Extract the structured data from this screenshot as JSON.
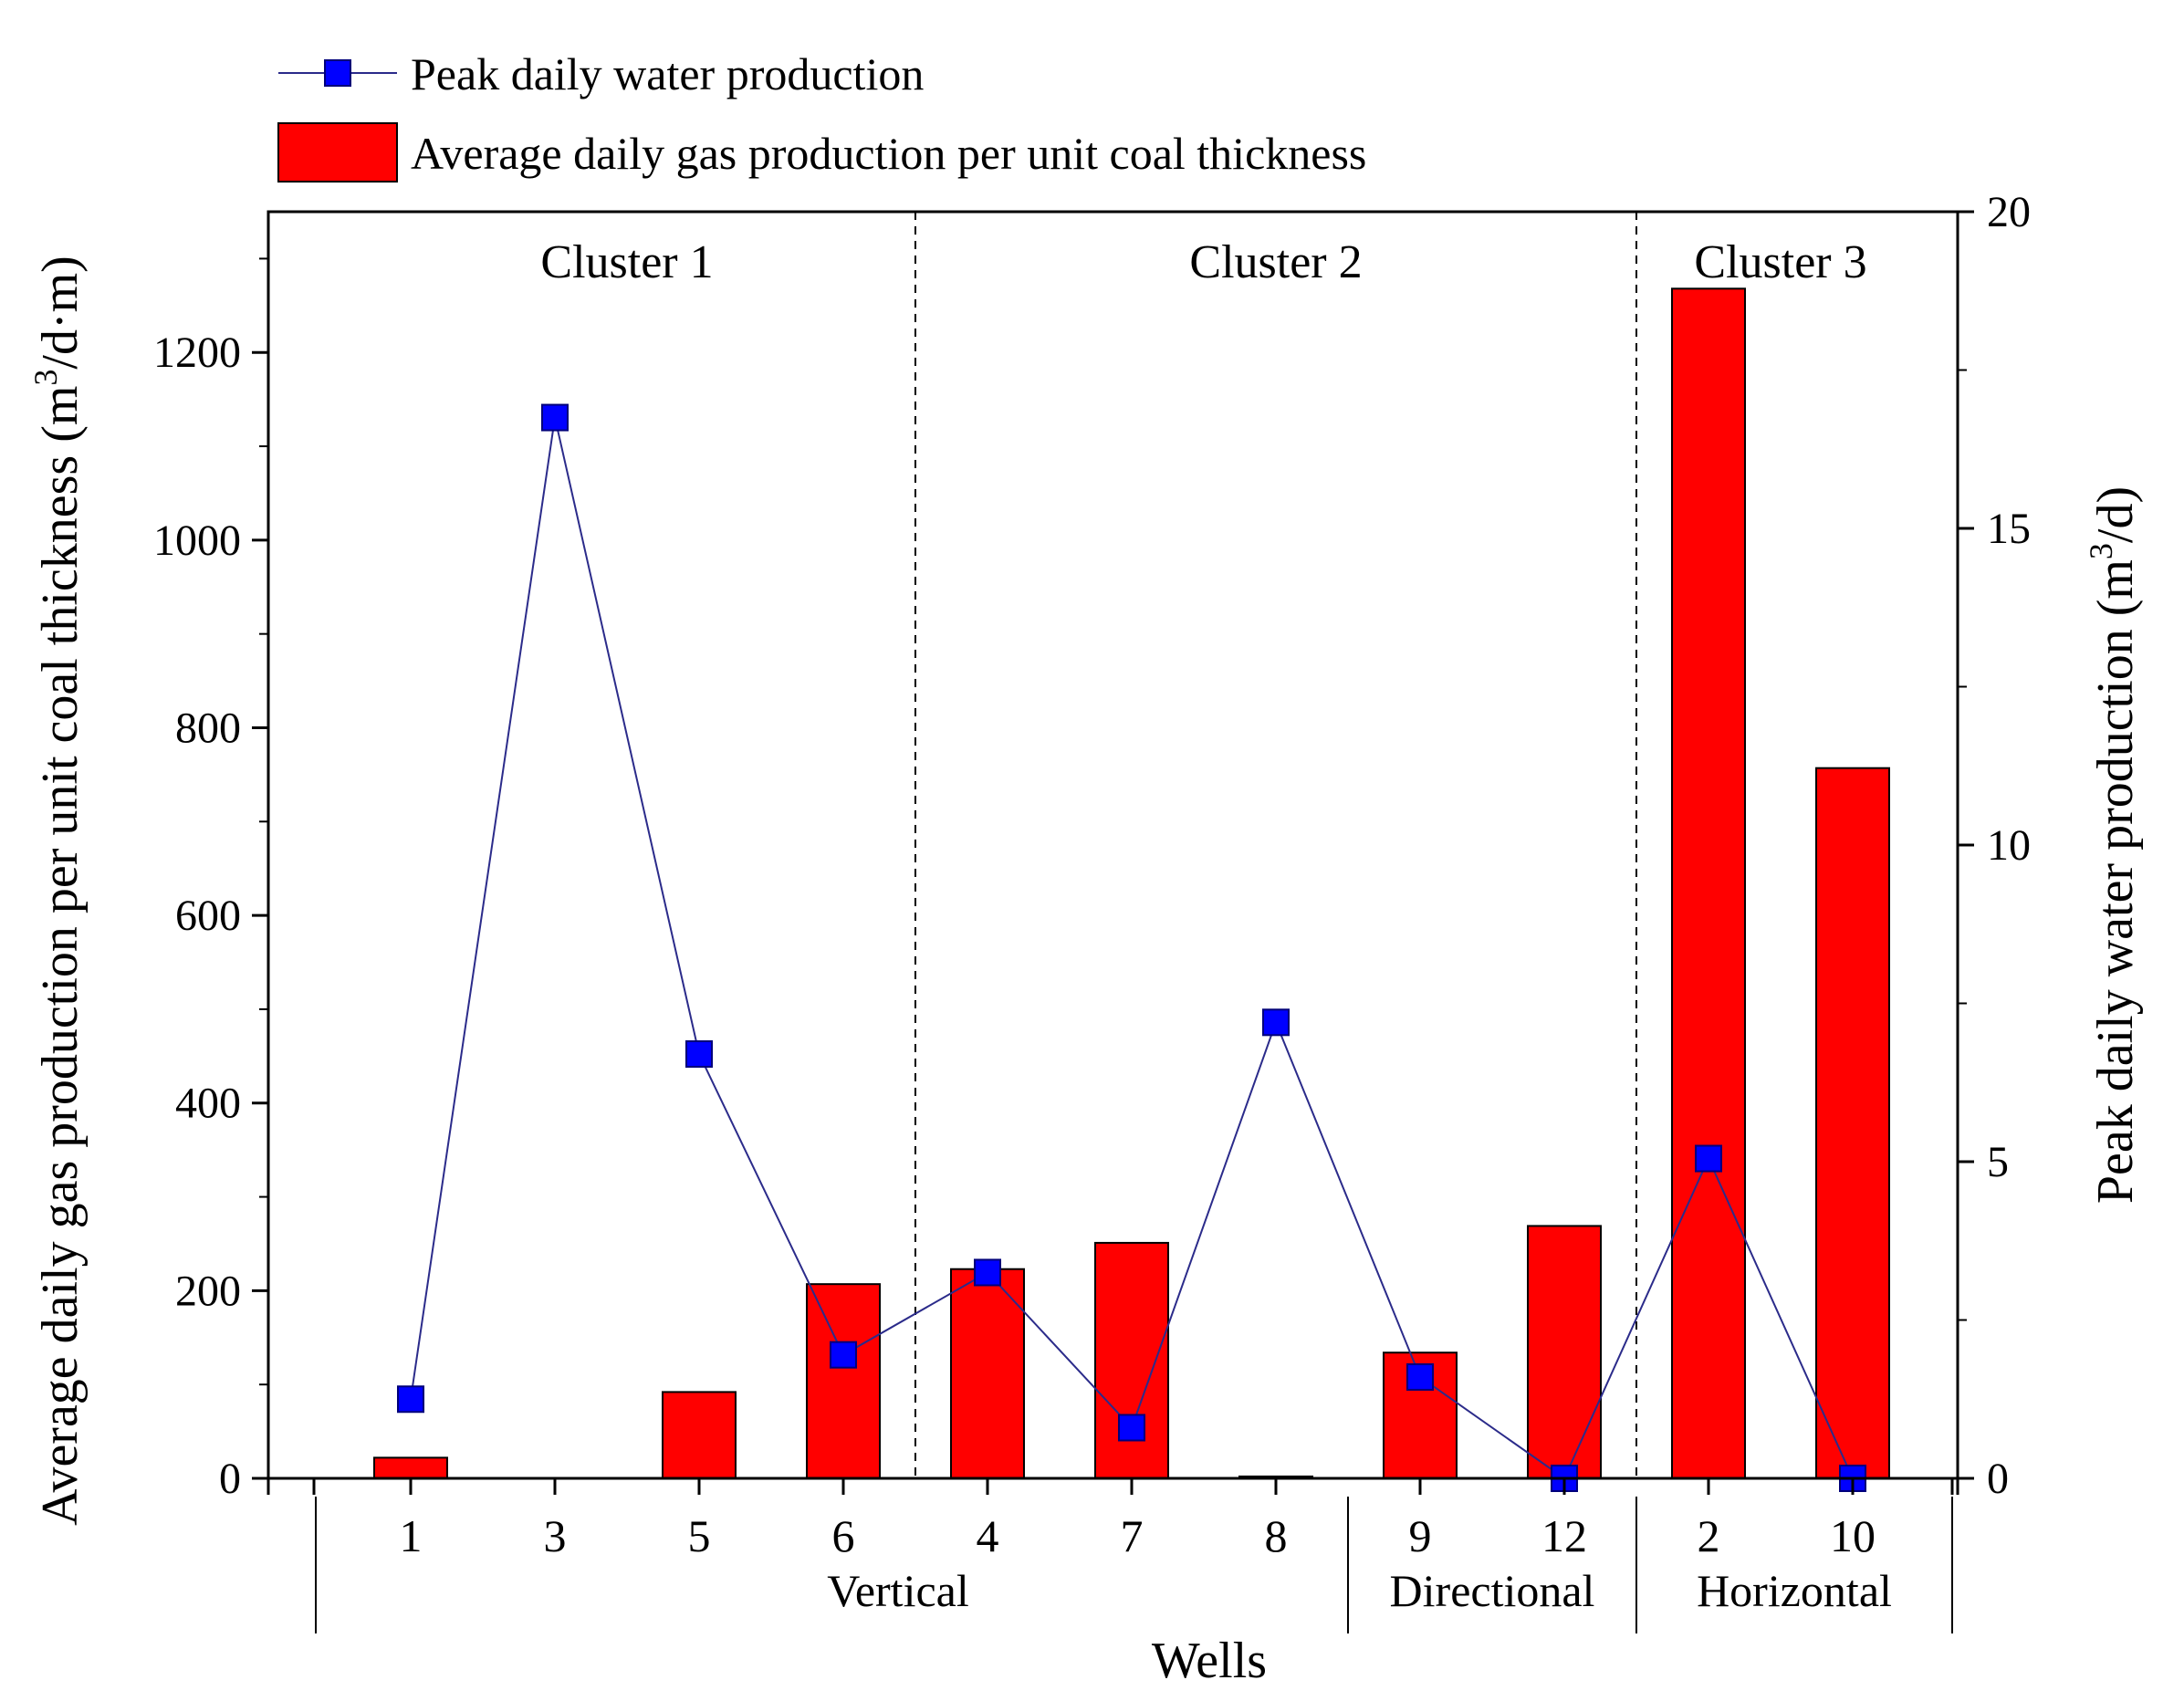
{
  "chart_data": {
    "type": "bar",
    "categories": [
      "1",
      "3",
      "5",
      "6",
      "4",
      "7",
      "8",
      "9",
      "12",
      "2",
      "10"
    ],
    "xlabel": "Wells",
    "ylabel": "Average daily gas production per unit coal thickness (m3/d·m)",
    "ylabel_parts": {
      "pre": "Average daily gas production per unit coal thickness (m",
      "sup": "3",
      "post": "/d·m)"
    },
    "y2label": "Peak daily water production (m3/d)",
    "y2label_parts": {
      "pre": "Peak daily water production (m",
      "sup": "3",
      "post": "/d)"
    },
    "ylim": [
      0,
      1350
    ],
    "y2lim": [
      0,
      20
    ],
    "yticks": [
      0,
      200,
      400,
      600,
      800,
      1000,
      1200
    ],
    "y2ticks": [
      0,
      5,
      10,
      15,
      20
    ],
    "series": [
      {
        "name": "Average daily gas production per unit coal thickness",
        "type": "bar",
        "axis": "left",
        "color": "#ff0000",
        "values": [
          22,
          0,
          92,
          207,
          223,
          251,
          2,
          134,
          269,
          1268,
          757
        ]
      },
      {
        "name": "Peak daily water production",
        "type": "line",
        "axis": "right",
        "color": "#0000ff",
        "line_color": "#2b2b8a",
        "values": [
          1.25,
          16.75,
          6.7,
          1.95,
          3.25,
          0.8,
          7.2,
          1.6,
          0.0,
          5.05,
          0.0
        ]
      }
    ],
    "clusters": [
      {
        "label": "Cluster 1",
        "span": [
          0,
          3
        ]
      },
      {
        "label": "Cluster 2",
        "span": [
          4,
          8
        ]
      },
      {
        "label": "Cluster 3",
        "span": [
          9,
          10
        ]
      }
    ],
    "well_types": [
      {
        "label": "Vertical",
        "span": [
          0,
          6
        ]
      },
      {
        "label": "Directional",
        "span": [
          7,
          8
        ]
      },
      {
        "label": "Horizontal",
        "span": [
          9,
          10
        ]
      }
    ],
    "legend": [
      {
        "label": "Peak daily water production",
        "kind": "line-marker"
      },
      {
        "label": "Average daily gas production per unit coal thickness",
        "kind": "bar"
      }
    ],
    "legend_position": "top-left"
  }
}
